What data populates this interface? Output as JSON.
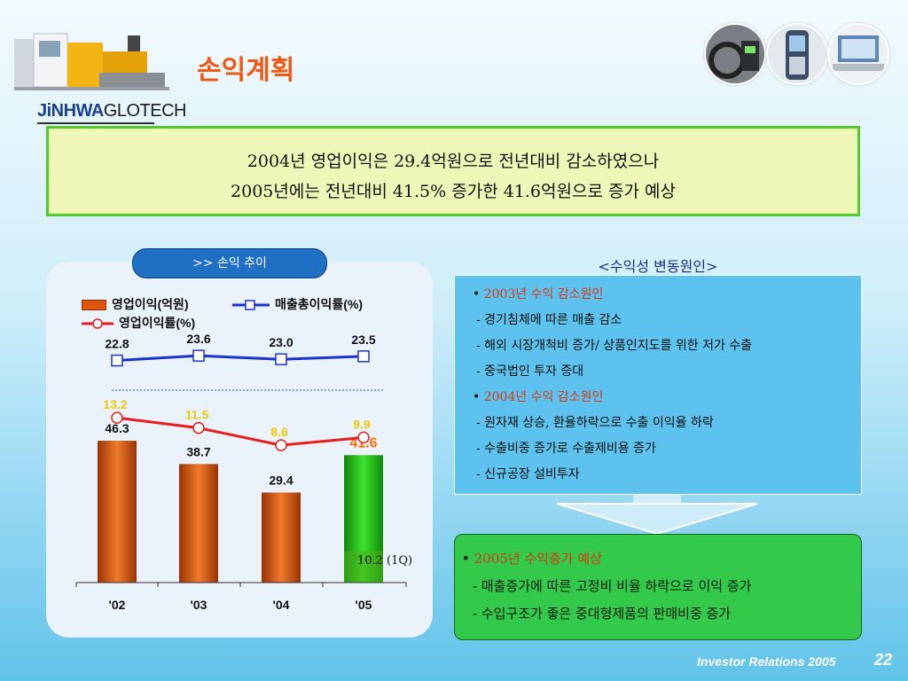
{
  "header": {
    "title": "손익계획",
    "logo_part1": "JiNHWA",
    "logo_part2": "GLOTECH"
  },
  "summary": {
    "line1": "2004년 영업이익은 29.4억원으로 전년대비 감소하였으나",
    "line2": "2005년에는 전년대비 41.5% 증가한 41.6억원으로 증가 예상"
  },
  "chart_panel": {
    "tab_label": ">> 손익 추이"
  },
  "chart_data": {
    "type": "bar",
    "categories": [
      "'02",
      "'03",
      "'04",
      "'05"
    ],
    "series": [
      {
        "name": "영업이익(억원)",
        "kind": "bar",
        "values": [
          46.3,
          38.7,
          29.4,
          41.6
        ],
        "labels": [
          "46.3",
          "38.7",
          "29.4",
          "41.6"
        ],
        "color": "#e0560c",
        "highlight_color": "#22c41a"
      },
      {
        "name": "매출총이익률(%)",
        "kind": "line",
        "values": [
          22.8,
          23.6,
          23.0,
          23.5
        ],
        "labels": [
          "22.8",
          "23.6",
          "23.0",
          "23.5"
        ],
        "color": "#1a33c8"
      },
      {
        "name": "영업이익률(%)",
        "kind": "line",
        "values": [
          13.2,
          11.5,
          8.6,
          9.9
        ],
        "labels": [
          "13.2",
          "11.5",
          "8.6",
          "9.9"
        ],
        "color": "#e61e1e",
        "label_color": "#f0c800"
      }
    ],
    "annotation": "10.2 (1Q)",
    "annotation_value": 10.2,
    "highlight_color": "#ff6a00",
    "bar_ylim": [
      0,
      55
    ]
  },
  "causes": {
    "title": "<수익성 변동원인>",
    "lines": [
      {
        "text": "2003년 수익 감소원인",
        "head": true
      },
      {
        "text": "- 경기침체에 따른 매출 감소",
        "head": false
      },
      {
        "text": "- 해외 시장개척비 증가/ 상품인지도를 위한 저가 수출",
        "head": false
      },
      {
        "text": "- 중국법인 투자 증대",
        "head": false
      },
      {
        "text": "2004년 수익 감소원인",
        "head": true
      },
      {
        "text": "- 원자재 상승, 환율하락으로 수출 이익율 하락",
        "head": false
      },
      {
        "text": "- 수출비중 증가로 수출제비용 증가",
        "head": false
      },
      {
        "text": "- 신규공장 설비투자",
        "head": false
      }
    ]
  },
  "forecast": {
    "lines": [
      {
        "text": "2005년 수익증가 예상",
        "head": true
      },
      {
        "text": "- 매출증가에 따른 고정비 비율 하락으로 이익 증가",
        "head": false
      },
      {
        "text": "- 수입구조가 좋은 중대형제품의 판매비중 증가",
        "head": false
      }
    ]
  },
  "footer": {
    "text": "Investor Relations 2005",
    "page": "22"
  },
  "colors": {
    "accent_orange": "#ee5a14",
    "summary_border": "#55c82e",
    "summary_bg": "#eff7b8",
    "causes_bg": "#5dc2ee",
    "forecast_bg": "#33c94a",
    "pill_bg": "#1f6fc4"
  }
}
